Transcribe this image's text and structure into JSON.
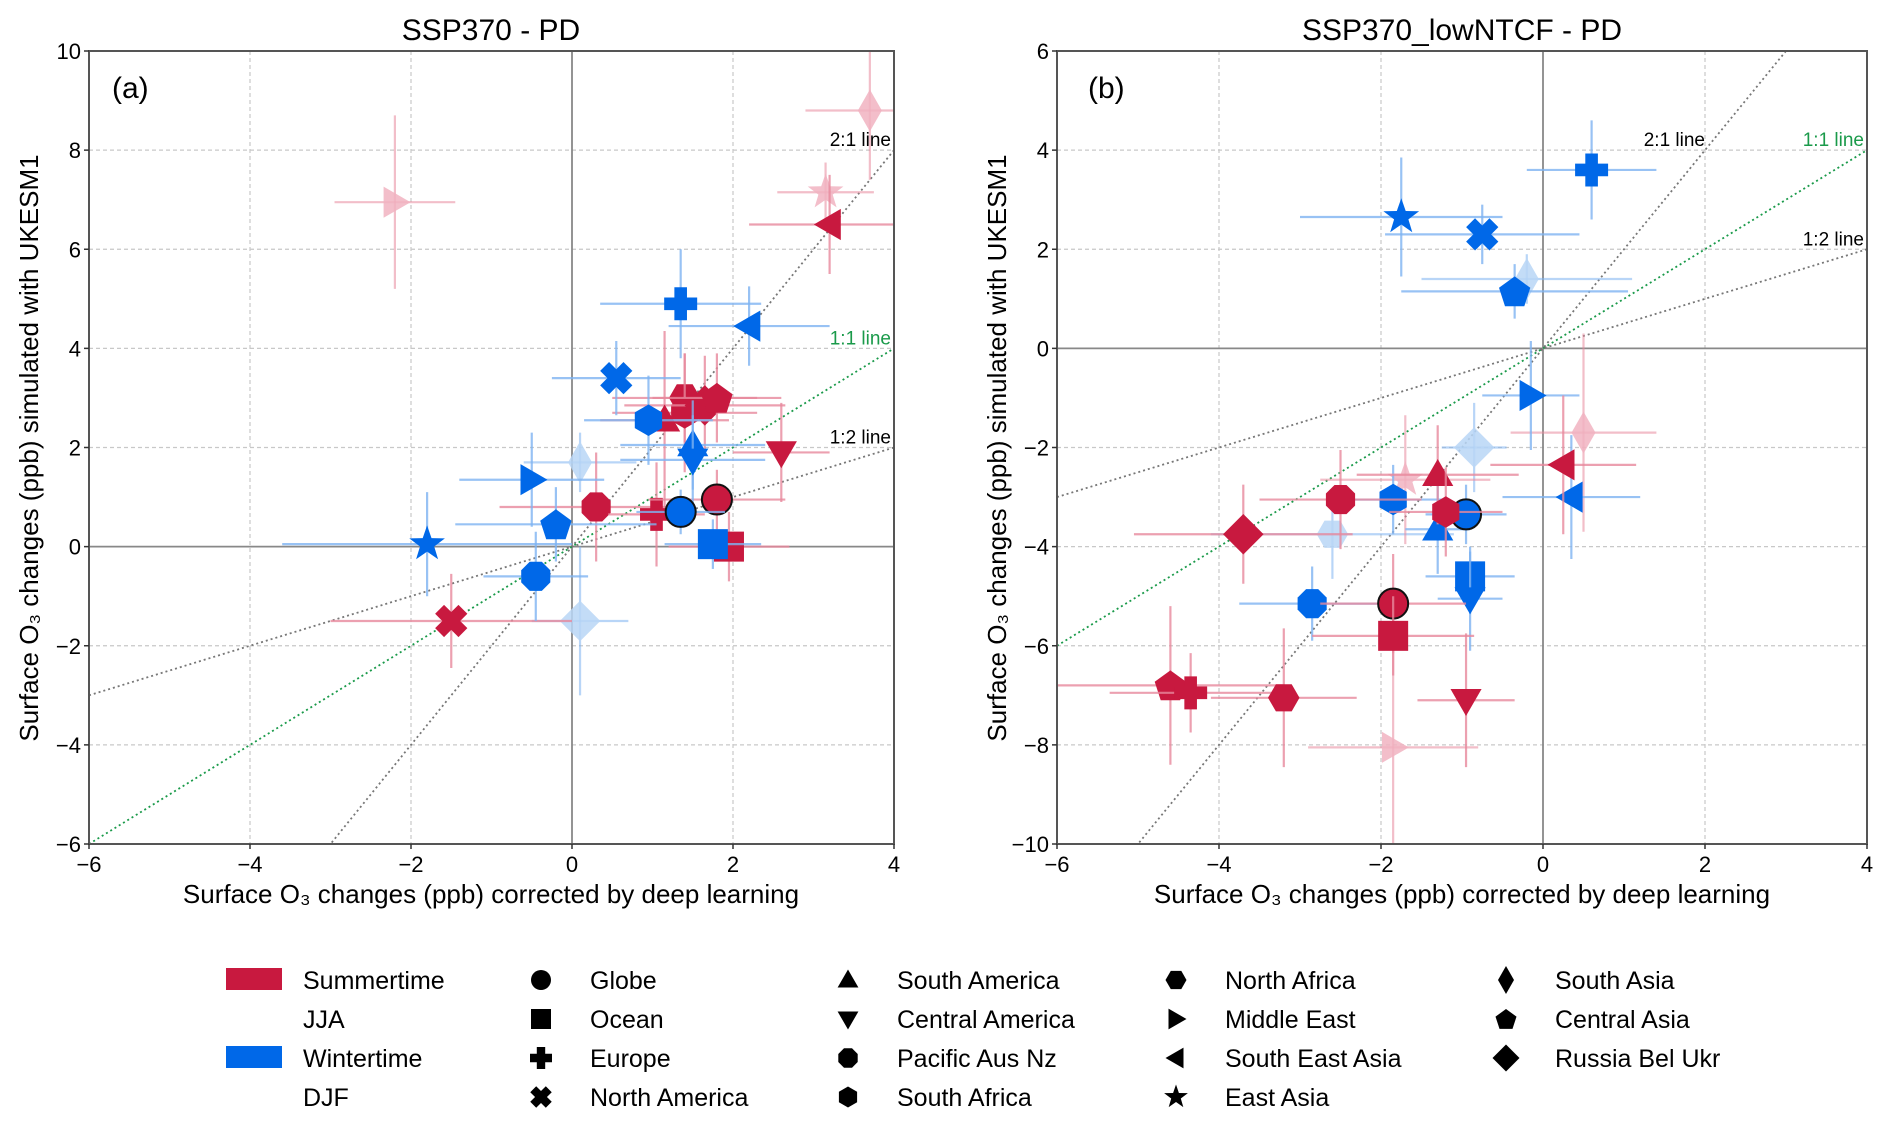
{
  "colors": {
    "summer": "#c8193f",
    "winter": "#0068e8",
    "summer_faded": "#f1b3c1",
    "winter_faded": "#b8d6f6",
    "summer_err": "#e8899d",
    "winter_err": "#7fb4f2",
    "one_to_one": "#1a9a4a",
    "ref_line": "#777777",
    "grid": "#c8c8c8"
  },
  "legend": {
    "seasons": [
      {
        "label": "Summertime",
        "sub": "JJA",
        "color_key": "summer"
      },
      {
        "label": "Wintertime",
        "sub": "DJF",
        "color_key": "winter"
      }
    ],
    "regions": [
      {
        "label": "Globe",
        "marker": "circle"
      },
      {
        "label": "Ocean",
        "marker": "square"
      },
      {
        "label": "Europe",
        "marker": "plus"
      },
      {
        "label": "North America",
        "marker": "x"
      },
      {
        "label": "South America",
        "marker": "triangle-up"
      },
      {
        "label": "Central America",
        "marker": "triangle-down"
      },
      {
        "label": "Pacific Aus Nz",
        "marker": "octagon"
      },
      {
        "label": "South Africa",
        "marker": "hexagon-v"
      },
      {
        "label": "North Africa",
        "marker": "hexagon-h"
      },
      {
        "label": "Middle East",
        "marker": "triangle-right"
      },
      {
        "label": "South East Asia",
        "marker": "triangle-left"
      },
      {
        "label": "East Asia",
        "marker": "star"
      },
      {
        "label": "South Asia",
        "marker": "thin-diamond"
      },
      {
        "label": "Central Asia",
        "marker": "pentagon"
      },
      {
        "label": "Russia Bel Ukr",
        "marker": "diamond"
      }
    ]
  },
  "chart_data": [
    {
      "type": "scatter",
      "panel_label": "(a)",
      "title": "SSP370 - PD",
      "xlabel": "Surface O3 changes (ppb) corrected by deep learning",
      "ylabel": "Surface O3 changes (ppb) simulated with UKESM1",
      "xlim": [
        -6,
        4
      ],
      "ylim": [
        -6,
        10
      ],
      "xticks": [
        -6,
        -4,
        -2,
        0,
        2,
        4
      ],
      "yticks": [
        -6,
        -4,
        -2,
        0,
        2,
        4,
        6,
        8,
        10
      ],
      "grid": true,
      "reference_lines": [
        {
          "label": "2:1 line",
          "slope": 2
        },
        {
          "label": "1:1 line",
          "slope": 1
        },
        {
          "label": "1:2 line",
          "slope": 0.5
        }
      ],
      "points": [
        {
          "region": "Middle East",
          "season": "summer",
          "x": -2.2,
          "y": 6.95,
          "xerr": 0.75,
          "yerr": 1.75,
          "faded": true
        },
        {
          "region": "South Asia",
          "season": "summer",
          "x": 3.7,
          "y": 8.8,
          "xerr": 0.8,
          "yerr": 1.4,
          "faded": true
        },
        {
          "region": "East Asia",
          "season": "summer",
          "x": 3.15,
          "y": 7.15,
          "xerr": 0.6,
          "yerr": 0.6,
          "faded": true
        },
        {
          "region": "South East Asia",
          "season": "summer",
          "x": 3.2,
          "y": 6.5,
          "xerr": 1.0,
          "yerr": 1.0,
          "faded": false
        },
        {
          "region": "North Africa",
          "season": "summer",
          "x": 1.4,
          "y": 3.0,
          "xerr": 0.9,
          "yerr": 0.9,
          "faded": false
        },
        {
          "region": "South Africa",
          "season": "summer",
          "x": 1.4,
          "y": 2.7,
          "xerr": 0.9,
          "yerr": 1.2,
          "faded": false
        },
        {
          "region": "Russia Bel Ukr",
          "season": "summer",
          "x": 1.65,
          "y": 2.85,
          "xerr": 1.0,
          "yerr": 1.0,
          "faded": false
        },
        {
          "region": "Central Asia",
          "season": "summer",
          "x": 1.8,
          "y": 3.0,
          "xerr": 0.8,
          "yerr": 0.9,
          "faded": false
        },
        {
          "region": "South America",
          "season": "summer",
          "x": 1.15,
          "y": 2.55,
          "xerr": 0.8,
          "yerr": 1.8,
          "faded": false
        },
        {
          "region": "Central America",
          "season": "summer",
          "x": 2.6,
          "y": 1.9,
          "xerr": 0.6,
          "yerr": 1.0,
          "faded": false
        },
        {
          "region": "Pacific Aus Nz",
          "season": "summer",
          "x": 0.3,
          "y": 0.8,
          "xerr": 1.2,
          "yerr": 1.1,
          "faded": false
        },
        {
          "region": "Europe",
          "season": "summer",
          "x": 1.05,
          "y": 0.65,
          "xerr": 0.6,
          "yerr": 1.05,
          "faded": false
        },
        {
          "region": "Globe",
          "season": "summer",
          "x": 1.8,
          "y": 0.95,
          "xerr": 0.85,
          "yerr": 0.6,
          "faded": false,
          "outline": true
        },
        {
          "region": "Ocean",
          "season": "summer",
          "x": 1.95,
          "y": 0.0,
          "xerr": 0.75,
          "yerr": 0.7,
          "faded": false
        },
        {
          "region": "North America",
          "season": "summer",
          "x": -1.5,
          "y": -1.5,
          "xerr": 1.5,
          "yerr": 0.95,
          "faded": false
        },
        {
          "region": "Europe",
          "season": "winter",
          "x": 1.35,
          "y": 4.9,
          "xerr": 1.0,
          "yerr": 1.1,
          "faded": false
        },
        {
          "region": "South East Asia",
          "season": "winter",
          "x": 2.2,
          "y": 4.45,
          "xerr": 1.0,
          "yerr": 0.8,
          "faded": false
        },
        {
          "region": "North America",
          "season": "winter",
          "x": 0.55,
          "y": 3.4,
          "xerr": 0.8,
          "yerr": 0.75,
          "faded": false
        },
        {
          "region": "South Africa",
          "season": "winter",
          "x": 0.95,
          "y": 2.55,
          "xerr": 0.8,
          "yerr": 0.9,
          "faded": false
        },
        {
          "region": "South America",
          "season": "winter",
          "x": 1.5,
          "y": 2.05,
          "xerr": 0.9,
          "yerr": 0.9,
          "faded": false
        },
        {
          "region": "Central America",
          "season": "winter",
          "x": 1.5,
          "y": 1.75,
          "xerr": 0.9,
          "yerr": 0.9,
          "faded": false
        },
        {
          "region": "South Asia",
          "season": "winter",
          "x": 0.1,
          "y": 1.7,
          "xerr": 0.7,
          "yerr": 0.6,
          "faded": true
        },
        {
          "region": "Middle East",
          "season": "winter",
          "x": -0.5,
          "y": 1.35,
          "xerr": 0.9,
          "yerr": 0.95,
          "faded": false
        },
        {
          "region": "Central Asia",
          "season": "winter",
          "x": -0.2,
          "y": 0.45,
          "xerr": 1.25,
          "yerr": 0.75,
          "faded": false
        },
        {
          "region": "Globe",
          "season": "winter",
          "x": 1.35,
          "y": 0.7,
          "xerr": 0.55,
          "yerr": 0.45,
          "faded": false,
          "outline": true
        },
        {
          "region": "Ocean",
          "season": "winter",
          "x": 1.75,
          "y": 0.05,
          "xerr": 0.6,
          "yerr": 0.5,
          "faded": false
        },
        {
          "region": "East Asia",
          "season": "winter",
          "x": -1.8,
          "y": 0.05,
          "xerr": 1.8,
          "yerr": 1.05,
          "faded": false
        },
        {
          "region": "Pacific Aus Nz",
          "season": "winter",
          "x": -0.45,
          "y": -0.6,
          "xerr": 0.65,
          "yerr": 0.9,
          "faded": false
        },
        {
          "region": "Russia Bel Ukr",
          "season": "winter",
          "x": 0.1,
          "y": -1.5,
          "xerr": 0.6,
          "yerr": 1.5,
          "faded": true
        }
      ]
    },
    {
      "type": "scatter",
      "panel_label": "(b)",
      "title": "SSP370_lowNTCF - PD",
      "xlabel": "Surface O3 changes (ppb) corrected by deep learning",
      "ylabel": "Surface O3 changes (ppb) simulated with UKESM1",
      "xlim": [
        -6,
        4
      ],
      "ylim": [
        -10,
        6
      ],
      "xticks": [
        -6,
        -4,
        -2,
        0,
        2,
        4
      ],
      "yticks": [
        -10,
        -8,
        -6,
        -4,
        -2,
        0,
        2,
        4,
        6
      ],
      "grid": true,
      "reference_lines": [
        {
          "label": "2:1 line",
          "slope": 2
        },
        {
          "label": "1:1 line",
          "slope": 1
        },
        {
          "label": "1:2 line",
          "slope": 0.5
        }
      ],
      "points": [
        {
          "region": "Europe",
          "season": "winter",
          "x": 0.6,
          "y": 3.6,
          "xerr": 0.8,
          "yerr": 1.0,
          "faded": false
        },
        {
          "region": "East Asia",
          "season": "winter",
          "x": -1.75,
          "y": 2.65,
          "xerr": 1.25,
          "yerr": 1.2,
          "faded": false
        },
        {
          "region": "North America",
          "season": "winter",
          "x": -0.75,
          "y": 2.3,
          "xerr": 1.2,
          "yerr": 0.6,
          "faded": false
        },
        {
          "region": "South Asia",
          "season": "winter",
          "x": -0.2,
          "y": 1.4,
          "xerr": 1.3,
          "yerr": 0.5,
          "faded": true
        },
        {
          "region": "Central Asia",
          "season": "winter",
          "x": -0.35,
          "y": 1.15,
          "xerr": 1.4,
          "yerr": 0.55,
          "faded": false
        },
        {
          "region": "Middle East",
          "season": "winter",
          "x": -0.15,
          "y": -0.95,
          "xerr": 0.6,
          "yerr": 1.1,
          "faded": false
        },
        {
          "region": "Russia Bel Ukr",
          "season": "winter",
          "x": -0.85,
          "y": -2.0,
          "xerr": 0.4,
          "yerr": 0.9,
          "faded": true
        },
        {
          "region": "South East Asia",
          "season": "winter",
          "x": 0.35,
          "y": -3.0,
          "xerr": 0.85,
          "yerr": 1.25,
          "faded": false
        },
        {
          "region": "South Africa",
          "season": "winter",
          "x": -1.85,
          "y": -3.05,
          "xerr": 0.6,
          "yerr": 0.7,
          "faded": false
        },
        {
          "region": "North Africa",
          "season": "winter",
          "x": -2.6,
          "y": -3.75,
          "xerr": 1.5,
          "yerr": 0.9,
          "faded": true
        },
        {
          "region": "South America",
          "season": "winter",
          "x": -1.3,
          "y": -3.65,
          "xerr": 0.4,
          "yerr": 0.9,
          "faded": false
        },
        {
          "region": "Globe",
          "season": "winter",
          "x": -0.95,
          "y": -3.35,
          "xerr": 0.5,
          "yerr": 0.6,
          "faded": false,
          "outline": true
        },
        {
          "region": "Ocean",
          "season": "winter",
          "x": -0.9,
          "y": -4.6,
          "xerr": 0.55,
          "yerr": 0.5,
          "faded": false
        },
        {
          "region": "Central America",
          "season": "winter",
          "x": -0.9,
          "y": -5.05,
          "xerr": 0.4,
          "yerr": 1.05,
          "faded": false
        },
        {
          "region": "Pacific Aus Nz",
          "season": "winter",
          "x": -2.85,
          "y": -5.15,
          "xerr": 0.9,
          "yerr": 0.75,
          "faded": false
        },
        {
          "region": "South Asia",
          "season": "summer",
          "x": 0.5,
          "y": -1.7,
          "xerr": 0.9,
          "yerr": 2.0,
          "faded": true
        },
        {
          "region": "South East Asia",
          "season": "summer",
          "x": 0.25,
          "y": -2.35,
          "xerr": 0.9,
          "yerr": 1.4,
          "faded": false
        },
        {
          "region": "East Asia",
          "season": "summer",
          "x": -1.7,
          "y": -2.65,
          "xerr": 1.05,
          "yerr": 1.3,
          "faded": true
        },
        {
          "region": "South America",
          "season": "summer",
          "x": -1.3,
          "y": -2.55,
          "xerr": 1.0,
          "yerr": 1.0,
          "faded": false
        },
        {
          "region": "Pacific Aus Nz",
          "season": "summer",
          "x": -2.5,
          "y": -3.05,
          "xerr": 1.0,
          "yerr": 1.0,
          "faded": false
        },
        {
          "region": "South Africa",
          "season": "summer",
          "x": -1.2,
          "y": -3.3,
          "xerr": 0.7,
          "yerr": 0.9,
          "faded": false
        },
        {
          "region": "Russia Bel Ukr",
          "season": "summer",
          "x": -3.7,
          "y": -3.75,
          "xerr": 1.35,
          "yerr": 1.0,
          "faded": false
        },
        {
          "region": "Globe",
          "season": "summer",
          "x": -1.85,
          "y": -5.15,
          "xerr": 0.9,
          "yerr": 1.0,
          "faded": false,
          "outline": true
        },
        {
          "region": "Ocean",
          "season": "summer",
          "x": -1.85,
          "y": -5.8,
          "xerr": 1.0,
          "yerr": 0.8,
          "faded": false
        },
        {
          "region": "Central Asia",
          "season": "summer",
          "x": -4.6,
          "y": -6.8,
          "xerr": 1.4,
          "yerr": 1.6,
          "faded": false
        },
        {
          "region": "Europe",
          "season": "summer",
          "x": -4.35,
          "y": -6.95,
          "xerr": 1.0,
          "yerr": 0.8,
          "faded": false
        },
        {
          "region": "North Africa",
          "season": "summer",
          "x": -3.2,
          "y": -7.05,
          "xerr": 0.9,
          "yerr": 1.4,
          "faded": false
        },
        {
          "region": "Central America",
          "season": "summer",
          "x": -0.95,
          "y": -7.1,
          "xerr": 0.6,
          "yerr": 1.35,
          "faded": false
        },
        {
          "region": "Middle East",
          "season": "summer",
          "x": -1.85,
          "y": -8.05,
          "xerr": 1.05,
          "yerr": 2.0,
          "faded": true
        }
      ]
    }
  ]
}
